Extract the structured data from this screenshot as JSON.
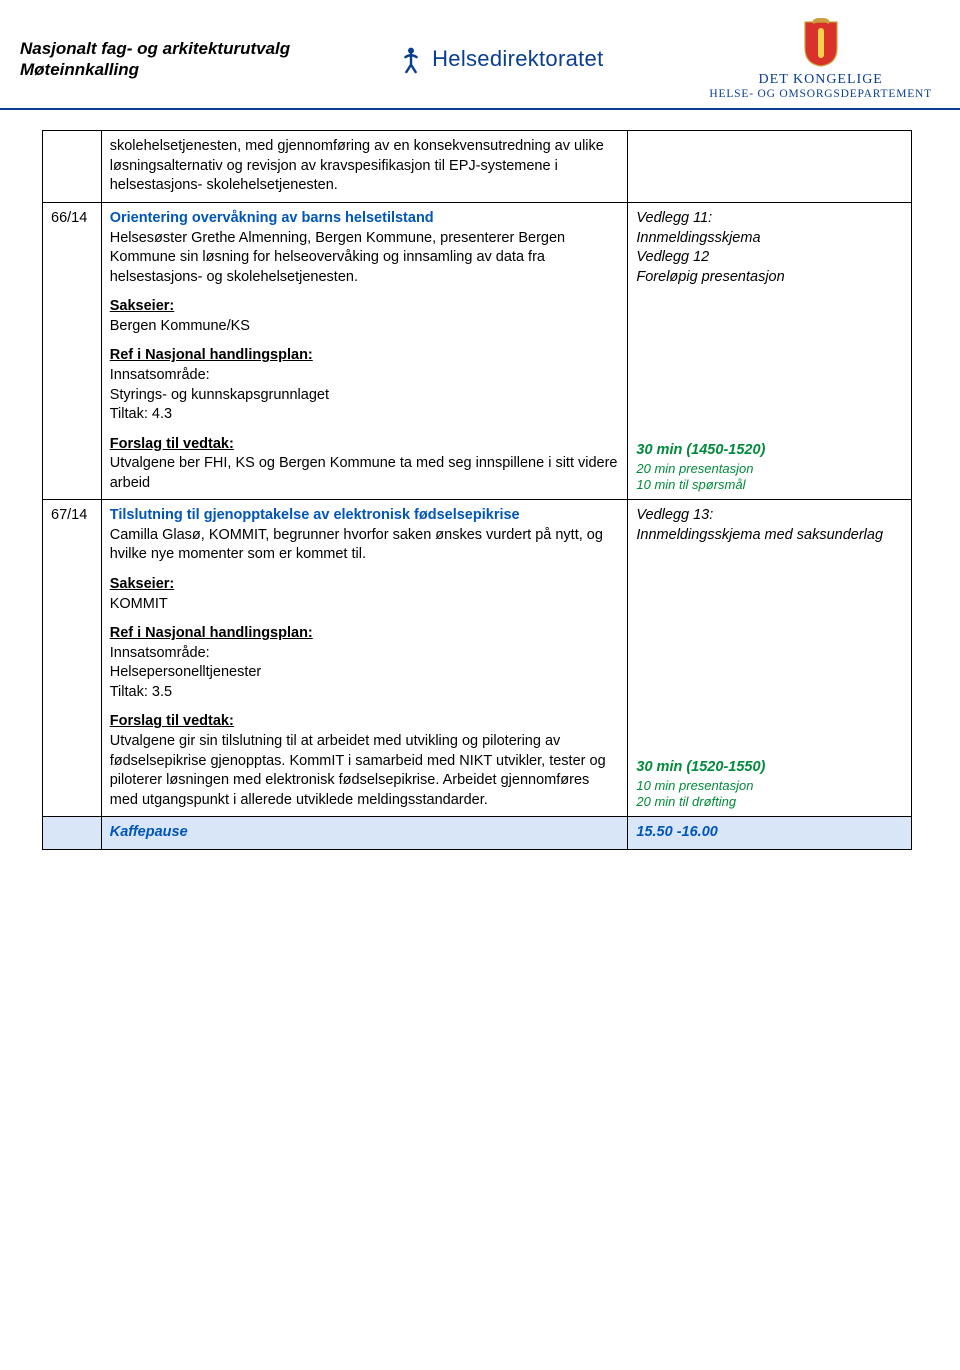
{
  "header": {
    "title_line1": "Nasjonalt fag- og arkitekturutvalg",
    "title_line2": "Møteinnkalling",
    "hd_text": "Helsedirektoratet",
    "dept_line1": "DET KONGELIGE",
    "dept_line2": "HELSE- OG OMSORGSDEPARTEMENT"
  },
  "colors": {
    "rule": "#0a3e91",
    "title_blue": "#0056b8",
    "green": "#008a3a",
    "blue_row_bg": "#d9e6f7"
  },
  "rows": [
    {
      "id": "",
      "desc_blocks": [
        {
          "type": "text",
          "text": "skolehelsetjenesten, med gjennomføring av en konsekvensutredning av ulike løsningsalternativ og revisjon av kravspesifikasjon til EPJ-systemene i helsestasjons- skolehelsetjenesten."
        }
      ],
      "side_blocks": []
    },
    {
      "id": "66/14",
      "desc_blocks": [
        {
          "type": "title",
          "text": "Orientering overvåkning av barns helsetilstand"
        },
        {
          "type": "text",
          "text": "Helsesøster Grethe Almenning, Bergen Kommune, presenterer Bergen Kommune sin løsning for helseovervåking og innsamling av data fra helsestasjons- og skolehelsetjenesten."
        },
        {
          "type": "heading",
          "text": "Sakseier:"
        },
        {
          "type": "text",
          "text": "Bergen Kommune/KS"
        },
        {
          "type": "heading",
          "text": "Ref i Nasjonal handlingsplan:"
        },
        {
          "type": "text",
          "text": "Innsatsområde:"
        },
        {
          "type": "text",
          "text": "Styrings- og kunnskapsgrunnlaget"
        },
        {
          "type": "text",
          "text": "Tiltak: 4.3"
        },
        {
          "type": "heading",
          "text": "Forslag til vedtak:"
        },
        {
          "type": "text",
          "text": "Utvalgene ber FHI, KS og Bergen Kommune ta med seg innspillene i sitt videre arbeid"
        }
      ],
      "side_blocks": [
        {
          "type": "italic",
          "text": "Vedlegg 11:"
        },
        {
          "type": "italic",
          "text": "Innmeldingsskjema"
        },
        {
          "type": "italic",
          "text": "Vedlegg 12"
        },
        {
          "type": "italic",
          "text": "Foreløpig presentasjon"
        },
        {
          "type": "gap"
        },
        {
          "type": "green_bold",
          "text": "30 min (1450-1520)"
        },
        {
          "type": "green_sub",
          "text": "20 min presentasjon"
        },
        {
          "type": "green_sub",
          "text": "10 min til spørsmål"
        }
      ]
    },
    {
      "id": "67/14",
      "desc_blocks": [
        {
          "type": "title",
          "text": "Tilslutning til gjenopptakelse av elektronisk fødselsepikrise"
        },
        {
          "type": "text",
          "text": "Camilla Glasø, KOMMIT, begrunner hvorfor saken ønskes vurdert på nytt, og hvilke nye momenter som er kommet til."
        },
        {
          "type": "heading",
          "text": "Sakseier:"
        },
        {
          "type": "text",
          "text": "KOMMIT"
        },
        {
          "type": "heading",
          "text": "Ref i Nasjonal handlingsplan:"
        },
        {
          "type": "text",
          "text": "Innsatsområde:"
        },
        {
          "type": "text",
          "text": "Helsepersonelltjenester"
        },
        {
          "type": "text",
          "text": "Tiltak: 3.5"
        },
        {
          "type": "heading",
          "text": "Forslag til vedtak:"
        },
        {
          "type": "text",
          "text": "Utvalgene gir sin tilslutning til at arbeidet med utvikling og pilotering av fødselsepikrise gjenopptas. KommIT i samarbeid med NIKT utvikler, tester og piloterer løsningen med elektronisk fødselsepikrise. Arbeidet gjennomføres med utgangspunkt i allerede utviklede meldingsstandarder."
        }
      ],
      "side_blocks": [
        {
          "type": "italic",
          "text": "Vedlegg 13:"
        },
        {
          "type": "italic",
          "text": "Innmeldingsskjema med saksunderlag"
        },
        {
          "type": "gap"
        },
        {
          "type": "green_bold",
          "text": "30 min (1520-1550)"
        },
        {
          "type": "green_sub",
          "text": "10 min presentasjon"
        },
        {
          "type": "green_sub",
          "text": "20 min til drøfting"
        }
      ]
    }
  ],
  "break_row": {
    "label": "Kaffepause",
    "time": "15.50 -16.00"
  }
}
